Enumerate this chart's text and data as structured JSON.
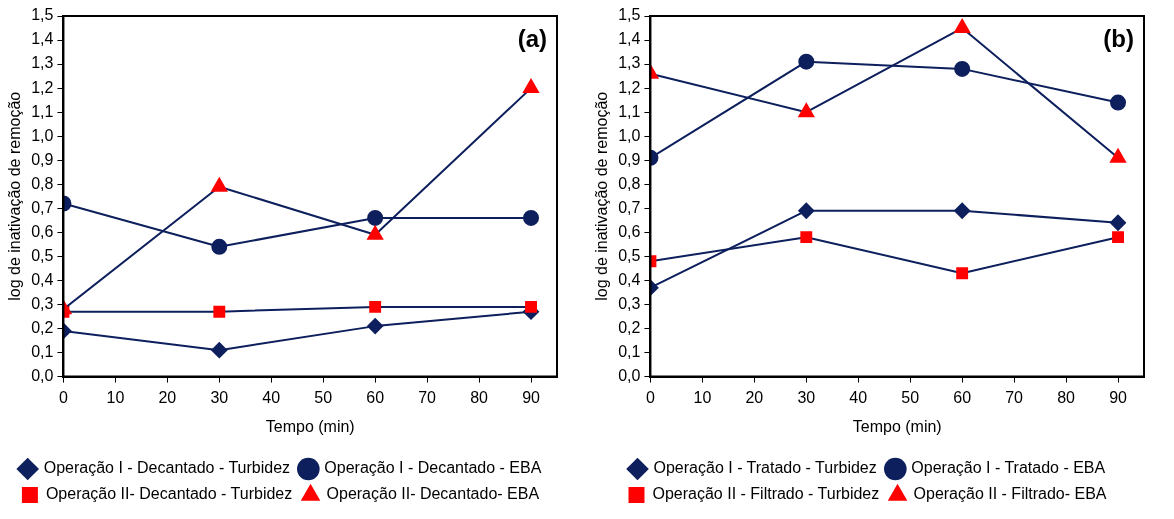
{
  "chart_data": [
    {
      "type": "line",
      "xlabel": "Tempo (min)",
      "ylabel": "log de inativação de remoção",
      "annotations": [
        "(a)"
      ],
      "x": [
        0,
        30,
        60,
        90
      ],
      "xlim": [
        0,
        95
      ],
      "xticks": [
        0,
        10,
        20,
        30,
        40,
        50,
        60,
        70,
        80,
        90
      ],
      "ylim": [
        0,
        1.5
      ],
      "yticks": [
        {
          "value": 0,
          "label": "0,0"
        },
        {
          "value": 0.1,
          "label": "0,1"
        },
        {
          "value": 0.2,
          "label": "0,2"
        },
        {
          "value": 0.3,
          "label": "0,3"
        },
        {
          "value": 0.4,
          "label": "0,4"
        },
        {
          "value": 0.5,
          "label": "0,5"
        },
        {
          "value": 0.6,
          "label": "0,6"
        },
        {
          "value": 0.7,
          "label": "0,7"
        },
        {
          "value": 0.8,
          "label": "0,8"
        },
        {
          "value": 0.9,
          "label": "0,9"
        },
        {
          "value": 1,
          "label": "1,0"
        },
        {
          "value": 1.1,
          "label": "1,1"
        },
        {
          "value": 1.2,
          "label": "1,2"
        },
        {
          "value": 1.3,
          "label": "1,3"
        },
        {
          "value": 1.4,
          "label": "1,4"
        },
        {
          "value": 1.5,
          "label": "1,5"
        }
      ],
      "grid": false,
      "legend": "bottom",
      "line_style": "solid",
      "series": [
        {
          "name": "Operação I - Decantado - Turbidez",
          "color": "#0d1f5c",
          "marker": "diamond",
          "values": [
            0.19,
            0.11,
            0.21,
            0.27
          ]
        },
        {
          "name": "Operação I - Decantado - EBA",
          "color": "#0d1f5c",
          "marker": "circle",
          "values": [
            0.72,
            0.54,
            0.66,
            0.66
          ]
        },
        {
          "name": "Operação II- Decantado - Turbidez",
          "color": "#ff0000",
          "marker": "square",
          "values": [
            0.27,
            0.27,
            0.29,
            0.29
          ]
        },
        {
          "name": "Operação II- Decantado- EBA",
          "color": "#ff0000",
          "marker": "triangle",
          "values": [
            0.28,
            0.79,
            0.59,
            1.2
          ]
        }
      ]
    },
    {
      "type": "line",
      "xlabel": "Tempo (min)",
      "ylabel": "log de inativação de remoção",
      "annotations": [
        "(b)"
      ],
      "x": [
        0,
        30,
        60,
        90
      ],
      "xlim": [
        0,
        95
      ],
      "xticks": [
        0,
        10,
        20,
        30,
        40,
        50,
        60,
        70,
        80,
        90
      ],
      "ylim": [
        0,
        1.5
      ],
      "yticks": [
        {
          "value": 0,
          "label": "0,0"
        },
        {
          "value": 0.1,
          "label": "0,1"
        },
        {
          "value": 0.2,
          "label": "0,2"
        },
        {
          "value": 0.3,
          "label": "0,3"
        },
        {
          "value": 0.4,
          "label": "0,4"
        },
        {
          "value": 0.5,
          "label": "0,5"
        },
        {
          "value": 0.6,
          "label": "0,6"
        },
        {
          "value": 0.7,
          "label": "0,7"
        },
        {
          "value": 0.8,
          "label": "0,8"
        },
        {
          "value": 0.9,
          "label": "0,9"
        },
        {
          "value": 1,
          "label": "1,0"
        },
        {
          "value": 1.1,
          "label": "1,1"
        },
        {
          "value": 1.2,
          "label": "1,2"
        },
        {
          "value": 1.3,
          "label": "1,3"
        },
        {
          "value": 1.4,
          "label": "1,4"
        },
        {
          "value": 1.5,
          "label": "1,5"
        }
      ],
      "grid": false,
      "legend": "bottom",
      "line_style": "solid",
      "series": [
        {
          "name": "Operação I - Tratado - Turbidez",
          "color": "#0d1f5c",
          "marker": "diamond",
          "values": [
            0.37,
            0.69,
            0.69,
            0.64
          ]
        },
        {
          "name": "Operação I - Tratado - EBA",
          "color": "#0d1f5c",
          "marker": "circle",
          "values": [
            0.91,
            1.31,
            1.28,
            1.14
          ]
        },
        {
          "name": "Operação II - Filtrado - Turbidez",
          "color": "#ff0000",
          "marker": "square",
          "values": [
            0.48,
            0.58,
            0.43,
            0.58
          ]
        },
        {
          "name": "Operação II - Filtrado- EBA",
          "color": "#ff0000",
          "marker": "triangle",
          "values": [
            1.26,
            1.1,
            1.45,
            0.91
          ]
        }
      ]
    }
  ]
}
